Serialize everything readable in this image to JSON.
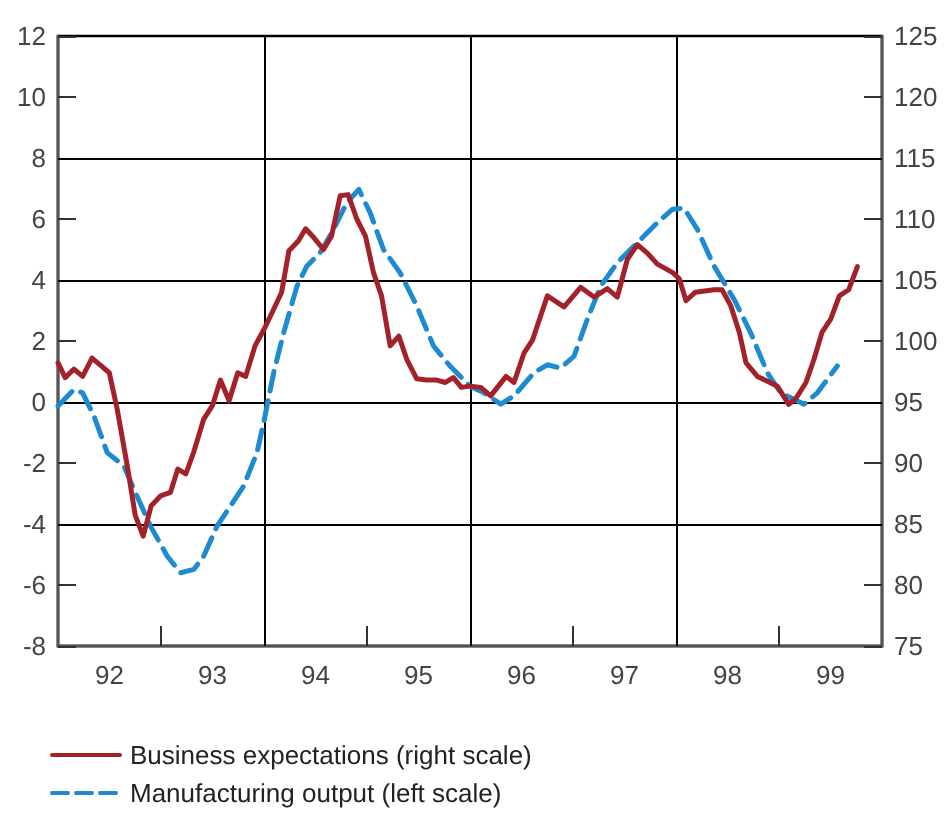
{
  "chart_data": {
    "type": "line",
    "xlim": [
      91.5,
      99.5
    ],
    "xticks": [
      92,
      93,
      94,
      95,
      96,
      97,
      98,
      99,
      {
        "value": 92.5,
        "label": null
      },
      {
        "value": 94.5,
        "label": null
      },
      {
        "value": 96.5,
        "label": null
      },
      {
        "value": 98.5,
        "label": null
      }
    ],
    "ylim": [
      -8,
      12
    ],
    "yticks": [
      -8,
      -6,
      -4,
      -2,
      0,
      2,
      4,
      6,
      8,
      10,
      12
    ],
    "y2lim": [
      75,
      125
    ],
    "y2ticks": [
      75,
      80,
      85,
      90,
      95,
      100,
      105,
      110,
      115,
      120,
      125
    ],
    "legend": "bottom",
    "marker": "none",
    "ref_lines": [
      {
        "axis": "y",
        "value": -4,
        "color": "#000000"
      },
      {
        "axis": "y",
        "value": 0,
        "color": "#000000"
      },
      {
        "axis": "y",
        "value": 4,
        "color": "#000000"
      },
      {
        "axis": "y",
        "value": 8,
        "color": "#000000"
      },
      {
        "axis": "x",
        "value": 93.5,
        "color": "#000000"
      },
      {
        "axis": "x",
        "value": 95.5,
        "color": "#000000"
      },
      {
        "axis": "x",
        "value": 97.5,
        "color": "#000000"
      }
    ],
    "series": [
      {
        "name": "Business expectations (right scale)",
        "color": "#a3222a",
        "axis": "y2",
        "line_style": "solid",
        "x": [
          91.5,
          91.57,
          91.655,
          91.739,
          91.83,
          91.914,
          91.998,
          92.075,
          92.172,
          92.25,
          92.327,
          92.405,
          92.495,
          92.592,
          92.663,
          92.741,
          92.818,
          92.915,
          92.999,
          93.077,
          93.161,
          93.245,
          93.322,
          93.413,
          93.503,
          93.594,
          93.671,
          93.742,
          93.833,
          93.904,
          93.981,
          94.078,
          94.156,
          94.24,
          94.317,
          94.401,
          94.485,
          94.563,
          94.641,
          94.725,
          94.809,
          94.886,
          94.983,
          95.08,
          95.177,
          95.261,
          95.339,
          95.416,
          95.5,
          95.604,
          95.701,
          95.85,
          95.927,
          96.024,
          96.108,
          96.251,
          96.413,
          96.574,
          96.704,
          96.833,
          96.93,
          97.028,
          97.125,
          97.222,
          97.319,
          97.468,
          97.532,
          97.597,
          97.688,
          97.869,
          97.947,
          98.031,
          98.115,
          98.18,
          98.29,
          98.387,
          98.484,
          98.594,
          98.665,
          98.762,
          98.84,
          98.917,
          99.002,
          99.086,
          99.176,
          99.261
        ],
        "values": [
          98.2,
          97.0,
          97.7,
          97.1,
          98.6,
          98.0,
          97.4,
          94.4,
          89.8,
          85.7,
          84.0,
          86.5,
          87.3,
          87.6,
          89.5,
          89.1,
          90.9,
          93.6,
          94.7,
          96.8,
          95.1,
          97.4,
          97.1,
          99.6,
          101.0,
          102.6,
          104.0,
          107.4,
          108.2,
          109.2,
          108.5,
          107.5,
          108.6,
          111.9,
          112.0,
          110.0,
          108.6,
          105.6,
          103.7,
          99.6,
          100.4,
          98.5,
          96.9,
          96.8,
          96.8,
          96.6,
          97.0,
          96.2,
          96.3,
          96.2,
          95.5,
          97.1,
          96.6,
          99.0,
          100.1,
          103.7,
          102.8,
          104.4,
          103.6,
          104.3,
          103.6,
          106.7,
          107.9,
          107.2,
          106.3,
          105.6,
          105.1,
          103.3,
          104.0,
          104.2,
          104.2,
          102.9,
          100.7,
          98.2,
          97.1,
          96.7,
          96.3,
          94.8,
          95.3,
          96.6,
          98.5,
          100.7,
          101.8,
          103.7,
          104.2,
          106.1
        ]
      },
      {
        "name": "Manufacturing output (left scale)",
        "color": "#1e8bd0",
        "line_style": "dashed",
        "x": [
          91.5,
          91.655,
          91.739,
          91.849,
          91.978,
          92.14,
          92.237,
          92.398,
          92.56,
          92.689,
          92.818,
          92.915,
          93.044,
          93.174,
          93.303,
          93.432,
          93.503,
          93.594,
          93.691,
          93.82,
          93.917,
          94.046,
          94.175,
          94.305,
          94.421,
          94.531,
          94.66,
          94.821,
          94.983,
          95.145,
          95.306,
          95.5,
          95.636,
          95.798,
          95.927,
          96.121,
          96.251,
          96.38,
          96.51,
          96.639,
          96.769,
          96.93,
          97.125,
          97.319,
          97.468,
          97.578,
          97.707,
          97.869,
          98.063,
          98.225,
          98.387,
          98.516,
          98.646,
          98.743,
          98.872,
          99.066
        ],
        "values": [
          -0.13,
          0.41,
          0.3,
          -0.46,
          -1.66,
          -2.1,
          -2.86,
          -4.07,
          -5.05,
          -5.6,
          -5.49,
          -5.05,
          -4.07,
          -3.41,
          -2.75,
          -1.66,
          -0.57,
          0.96,
          2.27,
          3.8,
          4.46,
          4.9,
          5.66,
          6.54,
          6.97,
          6.2,
          5.0,
          4.24,
          3.15,
          1.84,
          1.18,
          0.52,
          0.3,
          -0.07,
          0.2,
          0.96,
          1.22,
          1.11,
          1.5,
          2.71,
          3.8,
          4.57,
          5.22,
          5.88,
          6.32,
          6.36,
          5.66,
          4.46,
          3.37,
          2.27,
          0.96,
          0.3,
          0.09,
          -0.07,
          0.3,
          1.18
        ]
      }
    ]
  }
}
